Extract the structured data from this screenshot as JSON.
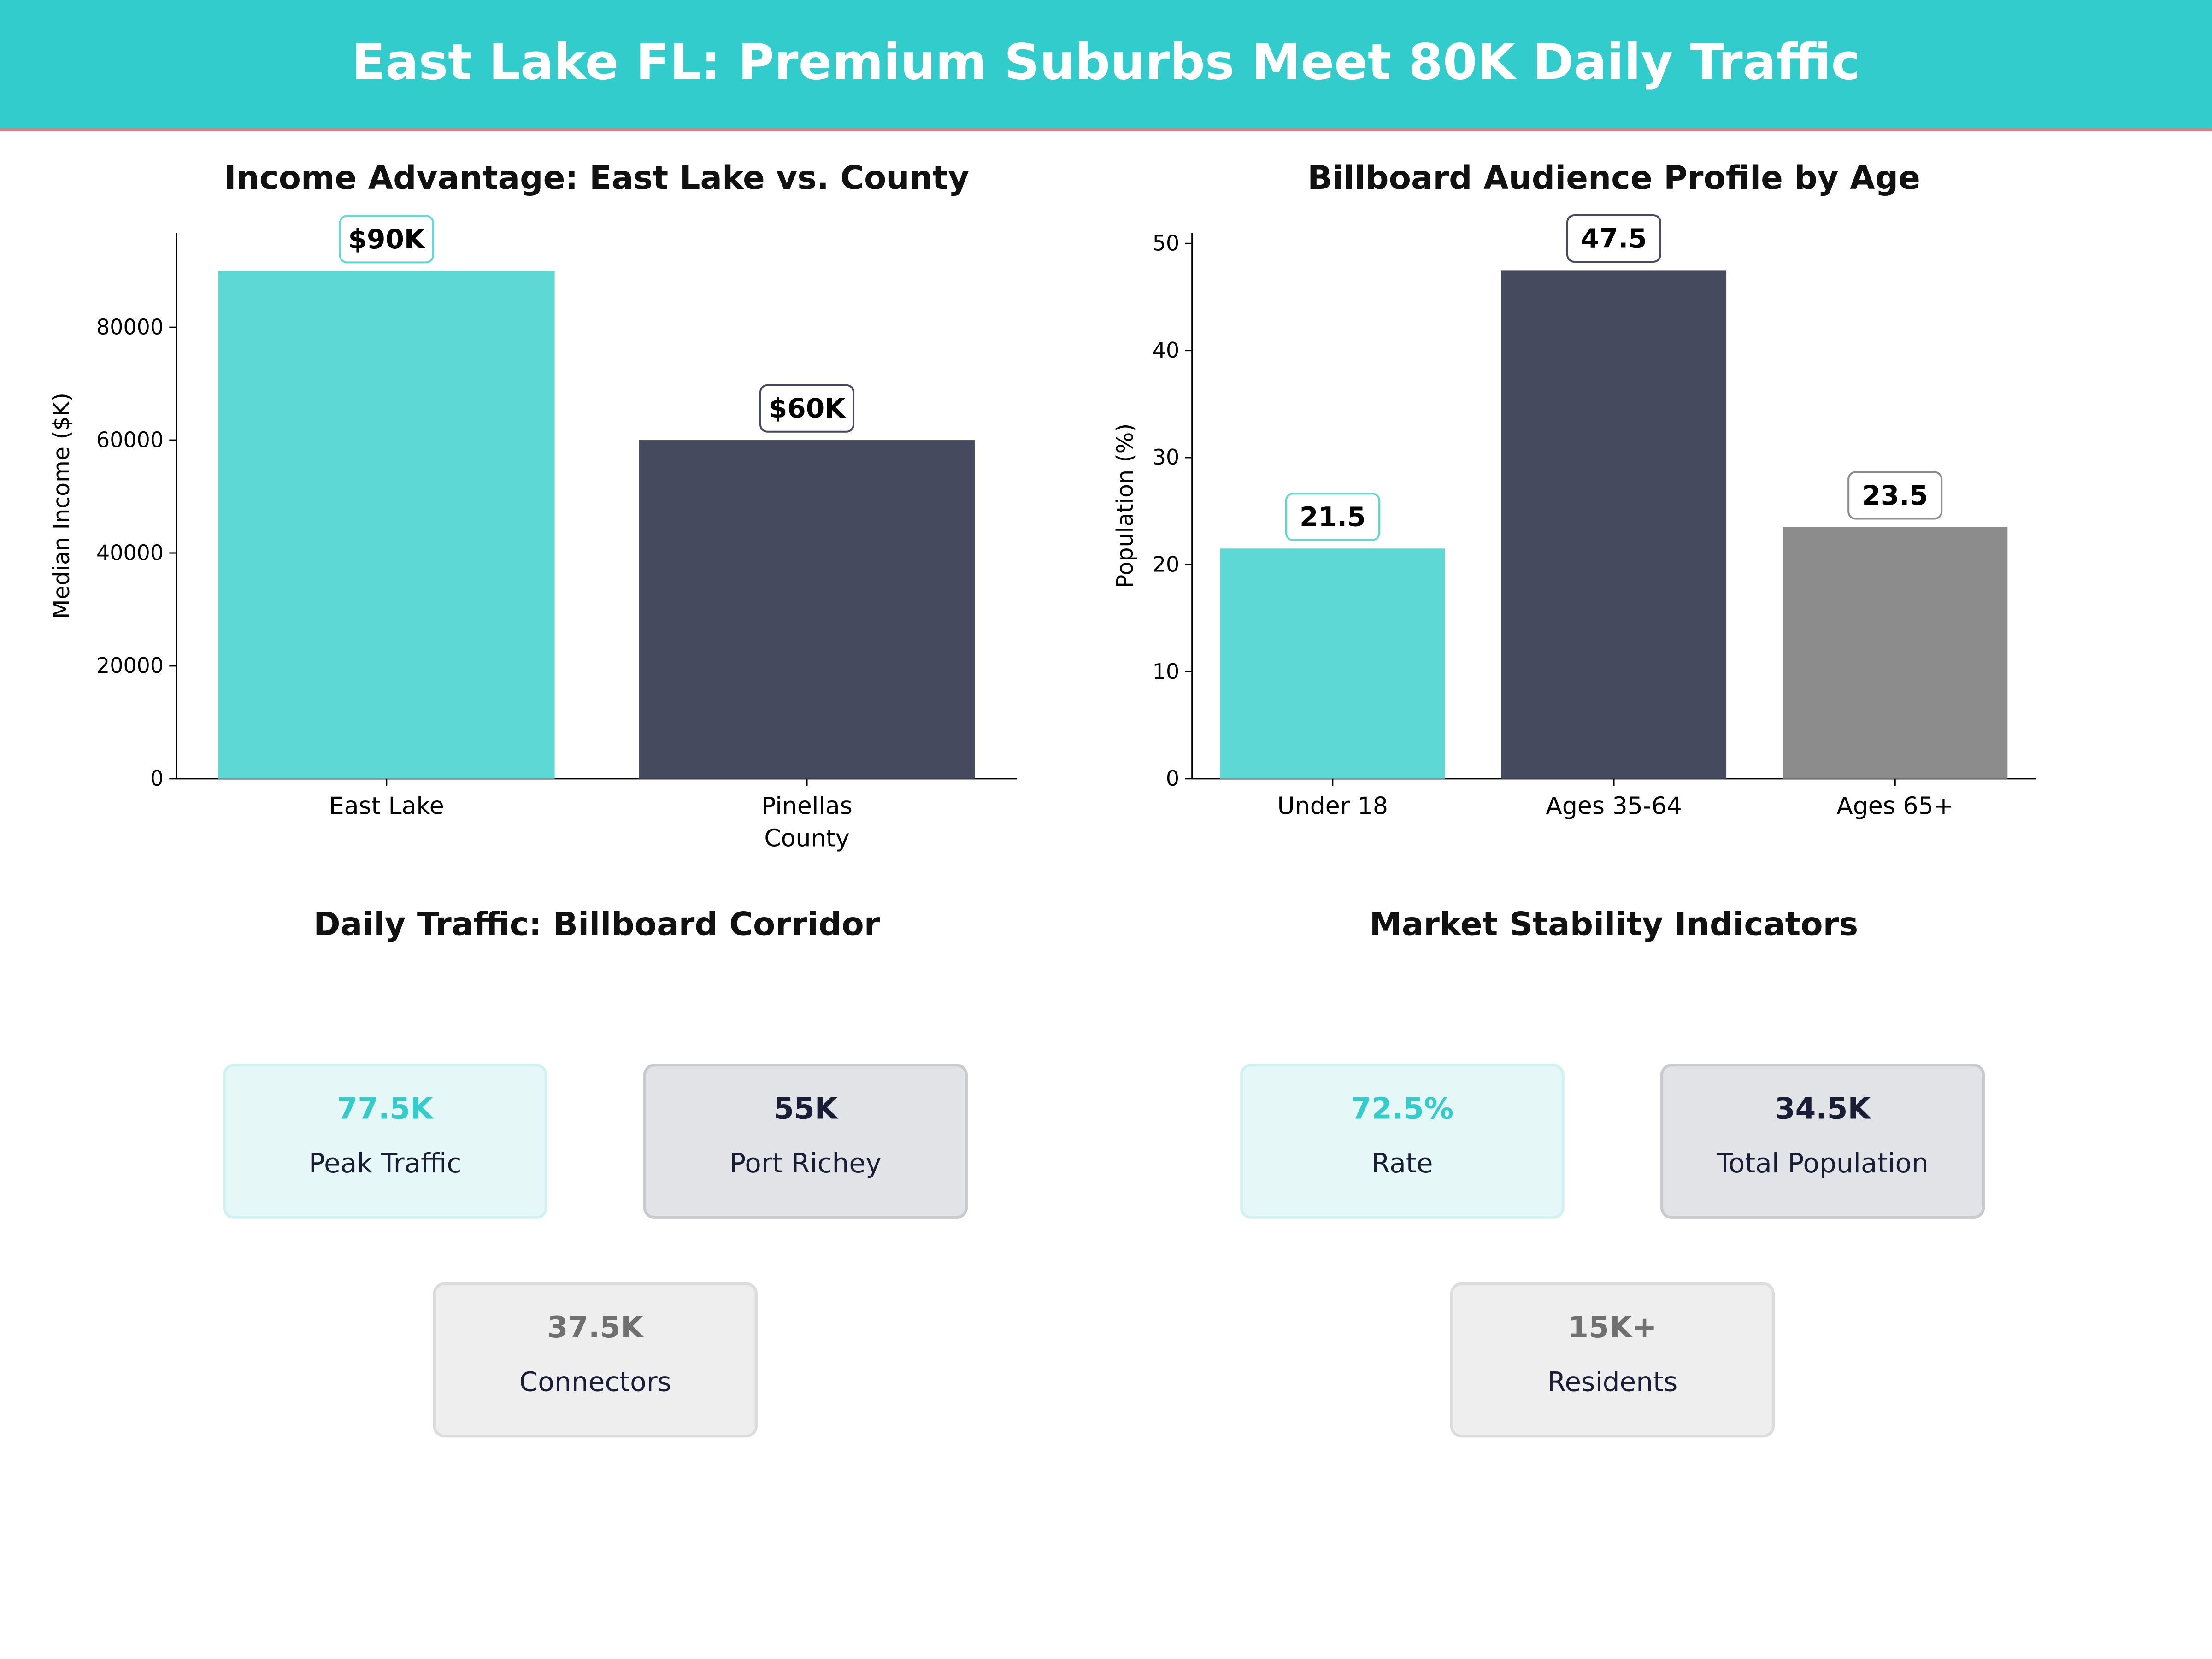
{
  "header": {
    "title": "East Lake FL: Premium Suburbs Meet 80K Daily Traffic",
    "color": "#33CCCC"
  },
  "chart_data": [
    {
      "type": "bar",
      "title": "Income Advantage: East Lake vs. County",
      "xlabel": "",
      "ylabel": "Median Income ($K)",
      "categories": [
        "East Lake",
        "Pinellas\nCounty"
      ],
      "values": [
        90000,
        60000
      ],
      "data_labels": [
        "$90K",
        "$60K"
      ],
      "colors": [
        "#5DD8D5",
        "#464A5F"
      ],
      "ylim": [
        0,
        96750
      ],
      "yticks": [
        0,
        20000,
        40000,
        60000,
        80000
      ],
      "grid": false
    },
    {
      "type": "bar",
      "title": "Billboard Audience Profile by Age",
      "xlabel": "",
      "ylabel": "Population (%)",
      "categories": [
        "Under 18",
        "Ages 35-64",
        "Ages 65+"
      ],
      "values": [
        21.5,
        47.5,
        23.5
      ],
      "data_labels": [
        "21.5",
        "47.5",
        "23.5"
      ],
      "colors": [
        "#5DD8D5",
        "#464A5F",
        "#8C8C8C"
      ],
      "ylim": [
        0,
        51
      ],
      "yticks": [
        0,
        10,
        20,
        30,
        40,
        50
      ],
      "grid": false
    }
  ],
  "traffic": {
    "title": "Daily Traffic: Billboard Corridor",
    "cards": [
      {
        "value": "77.5K",
        "label": "Peak Traffic",
        "style": "teal"
      },
      {
        "value": "55K",
        "label": "Port Richey",
        "style": "dark"
      },
      {
        "value": "37.5K",
        "label": "Connectors",
        "style": "gray"
      }
    ]
  },
  "stability": {
    "title": "Market Stability Indicators",
    "cards": [
      {
        "value": "72.5%",
        "label": "Rate",
        "style": "teal"
      },
      {
        "value": "34.5K",
        "label": "Total Population",
        "style": "dark"
      },
      {
        "value": "15K+",
        "label": "Residents",
        "style": "gray"
      }
    ]
  }
}
